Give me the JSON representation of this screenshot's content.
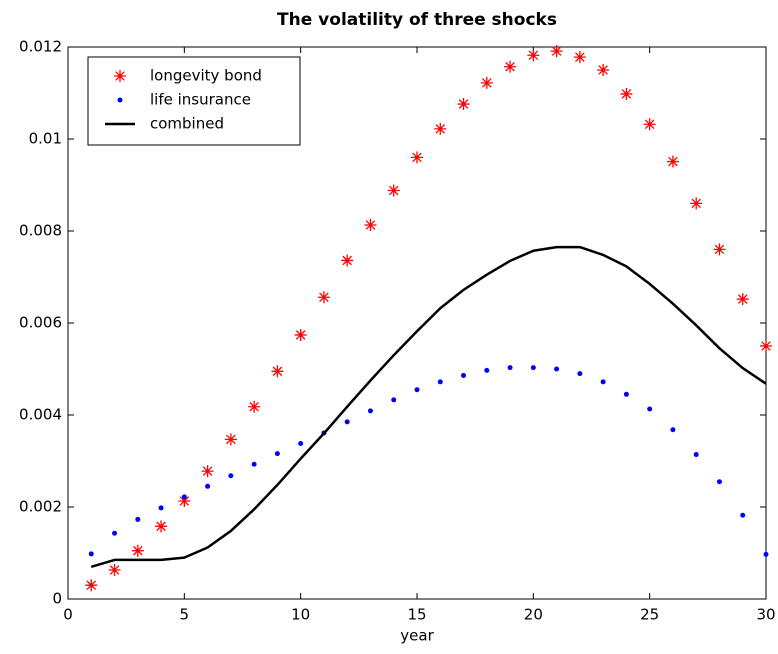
{
  "chart_data": {
    "type": "scatter-line",
    "title": "The volatility of three shocks",
    "x_label": "year",
    "x": [
      1,
      2,
      3,
      4,
      5,
      6,
      7,
      8,
      9,
      10,
      11,
      12,
      13,
      14,
      15,
      16,
      17,
      18,
      19,
      20,
      21,
      22,
      23,
      24,
      25,
      26,
      27,
      28,
      29,
      30
    ],
    "series": [
      {
        "name": "longevity bond",
        "color": "#ff0000",
        "style": "star",
        "values": [
          0.0003,
          0.00063,
          0.00105,
          0.00158,
          0.00213,
          0.00278,
          0.00347,
          0.00418,
          0.00495,
          0.00574,
          0.00656,
          0.00736,
          0.00813,
          0.00888,
          0.0096,
          0.01022,
          0.01076,
          0.01122,
          0.01157,
          0.01182,
          0.01191,
          0.01178,
          0.0115,
          0.01098,
          0.01032,
          0.00951,
          0.0086,
          0.0076,
          0.00652,
          0.0055
        ]
      },
      {
        "name": "life insurance",
        "color": "#0000ff",
        "style": "dot",
        "values": [
          0.00098,
          0.00143,
          0.00173,
          0.00198,
          0.00222,
          0.00245,
          0.00268,
          0.00293,
          0.00316,
          0.00338,
          0.00361,
          0.00385,
          0.00409,
          0.00433,
          0.00455,
          0.00472,
          0.00486,
          0.00497,
          0.00503,
          0.00503,
          0.005,
          0.0049,
          0.00472,
          0.00445,
          0.00413,
          0.00368,
          0.00314,
          0.00255,
          0.00182,
          0.00097
        ]
      },
      {
        "name": "combined",
        "color": "#000000",
        "style": "line",
        "values": [
          0.0007,
          0.00085,
          0.00085,
          0.00085,
          0.0009,
          0.00112,
          0.00148,
          0.00195,
          0.00248,
          0.00305,
          0.0036,
          0.00418,
          0.00475,
          0.0053,
          0.00582,
          0.00632,
          0.00672,
          0.00705,
          0.00735,
          0.00757,
          0.00765,
          0.00765,
          0.00748,
          0.00723,
          0.00685,
          0.00642,
          0.00595,
          0.00545,
          0.00502,
          0.00468
        ]
      }
    ],
    "xlim": [
      0,
      30
    ],
    "xticks": [
      0,
      5,
      10,
      15,
      20,
      25,
      30
    ],
    "ylim": [
      0,
      0.012
    ],
    "yticks": [
      0,
      0.002,
      0.004,
      0.006,
      0.008,
      0.01,
      0.012
    ],
    "grid": false,
    "legend": "upper-left"
  }
}
